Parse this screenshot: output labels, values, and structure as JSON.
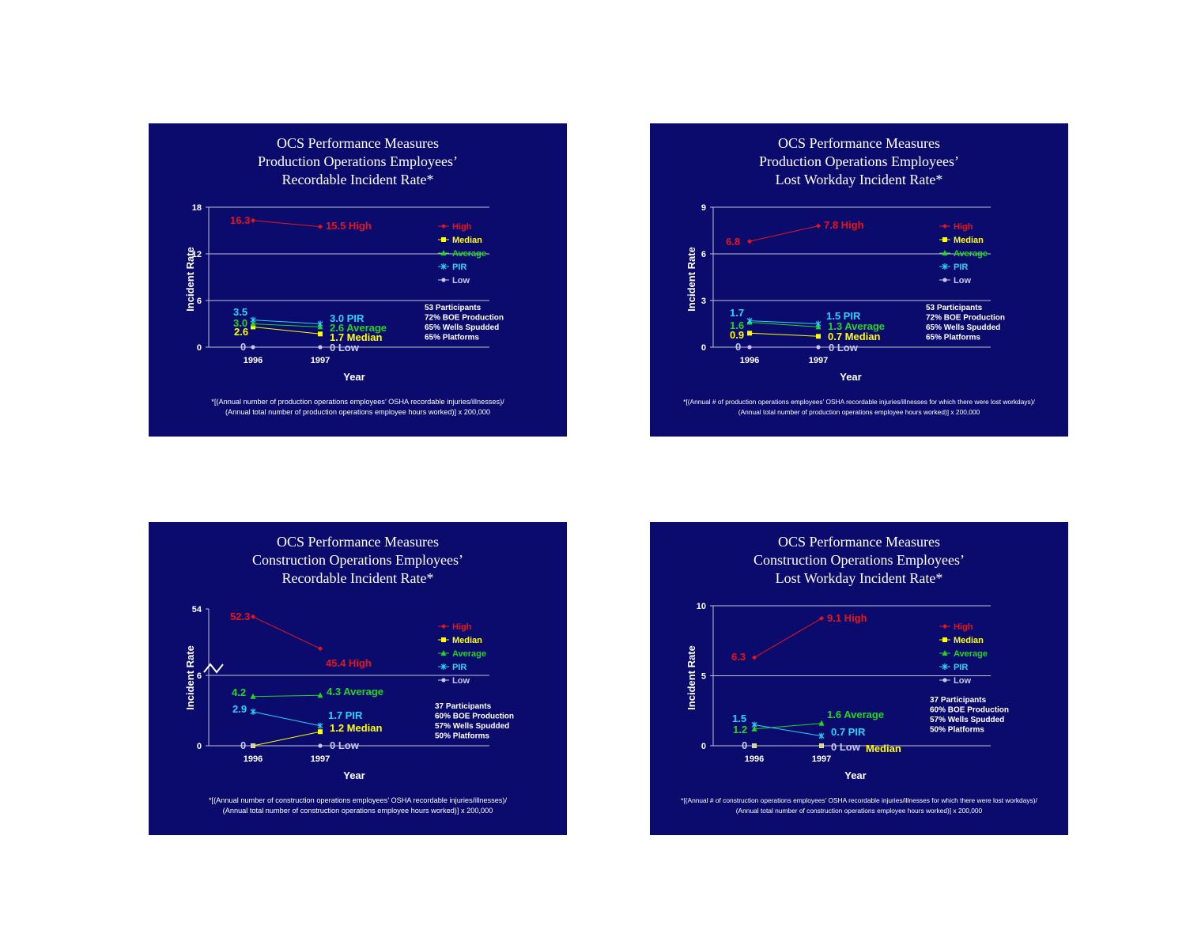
{
  "colors": {
    "slide_bg": "#0b0b6e",
    "High": "#e8141a",
    "Median": "#ffff00",
    "Average": "#22d622",
    "PIR": "#2ad4f4",
    "Low": "#c8c8f0",
    "text": "#ffffff"
  },
  "chart_data": [
    {
      "type": "line",
      "title": [
        "OCS Performance Measures",
        "Production Operations Employees’",
        "Recordable Incident Rate*"
      ],
      "footnote": [
        "*[(Annual number of production operations employees’ OSHA recordable injuries/illnesses)/",
        "(Annual total number of production operations employee hours worked)] x 200,000"
      ],
      "xlabel": "Year",
      "ylabel": "Incident Rate",
      "categories": [
        "1996",
        "1997"
      ],
      "y_ticks": [
        "0",
        "6",
        "12",
        "18"
      ],
      "ylim": [
        0,
        18
      ],
      "gridlines": [
        6,
        12,
        18
      ],
      "legend_position": "right",
      "legend": [
        "High",
        "Median",
        "Average",
        "PIR",
        "Low"
      ],
      "series": [
        {
          "name": "High",
          "values": [
            16.3,
            15.5
          ],
          "labels": [
            "16.3",
            "15.5 High"
          ]
        },
        {
          "name": "Median",
          "values": [
            2.6,
            1.7
          ],
          "labels": [
            "2.6",
            "1.7 Median"
          ]
        },
        {
          "name": "Average",
          "values": [
            3.0,
            2.6
          ],
          "labels": [
            "3.0",
            "2.6 Average"
          ]
        },
        {
          "name": "PIR",
          "values": [
            3.5,
            3.0
          ],
          "labels": [
            "3.5",
            "3.0 PIR"
          ]
        },
        {
          "name": "Low",
          "values": [
            0,
            0
          ],
          "labels": [
            "0",
            "0 Low"
          ]
        }
      ],
      "notes": [
        "53 Participants",
        "72% BOE Production",
        "65% Wells Spudded",
        "65% Platforms"
      ]
    },
    {
      "type": "line",
      "title": [
        "OCS Performance Measures",
        "Production Operations Employees’",
        "Lost Workday Incident Rate*"
      ],
      "footnote": [
        "*[(Annual # of production operations employees’ OSHA recordable injuries/illnesses for which there were lost workdays)/",
        "(Annual total number of production operations employee hours worked)] x 200,000"
      ],
      "xlabel": "Year",
      "ylabel": "Incident Rate",
      "categories": [
        "1996",
        "1997"
      ],
      "y_ticks": [
        "0",
        "3",
        "6",
        "9"
      ],
      "ylim": [
        0,
        9
      ],
      "gridlines": [
        3,
        6,
        9
      ],
      "legend_position": "right",
      "legend": [
        "High",
        "Median",
        "Average",
        "PIR",
        "Low"
      ],
      "series": [
        {
          "name": "High",
          "values": [
            6.8,
            7.8
          ],
          "labels": [
            "6.8",
            "7.8 High"
          ]
        },
        {
          "name": "Median",
          "values": [
            0.9,
            0.7
          ],
          "labels": [
            "0.9",
            "0.7 Median"
          ]
        },
        {
          "name": "Average",
          "values": [
            1.6,
            1.3
          ],
          "labels": [
            "1.6",
            "1.3 Average"
          ]
        },
        {
          "name": "PIR",
          "values": [
            1.7,
            1.5
          ],
          "labels": [
            "1.7",
            "1.5 PIR"
          ]
        },
        {
          "name": "Low",
          "values": [
            0,
            0
          ],
          "labels": [
            "0",
            "0 Low"
          ]
        }
      ],
      "notes": [
        "53 Participants",
        "72% BOE Production",
        "65% Wells Spudded",
        "65% Platforms"
      ]
    },
    {
      "type": "line",
      "title": [
        "OCS Performance Measures",
        "Construction Operations Employees’",
        "Recordable Incident Rate*"
      ],
      "footnote": [
        "*[(Annual number of construction operations employees’ OSHA recordable injuries/illnesses)/",
        "(Annual total number of construction operations employee hours worked)] x 200,000"
      ],
      "xlabel": "Year",
      "ylabel": "Incident Rate",
      "categories": [
        "1996",
        "1997"
      ],
      "y_ticks": [
        "0",
        "6",
        "54"
      ],
      "ylim": [
        0,
        54
      ],
      "axis_break": {
        "lower_max": 6,
        "upper_range": [
          42,
          54
        ]
      },
      "gridlines": [
        6
      ],
      "legend_position": "right",
      "legend": [
        "High",
        "Median",
        "Average",
        "PIR",
        "Low"
      ],
      "series": [
        {
          "name": "High",
          "values": [
            52.3,
            45.4
          ],
          "labels": [
            "52.3",
            "45.4 High"
          ]
        },
        {
          "name": "Median",
          "values": [
            0,
            1.2
          ],
          "labels": [
            "",
            "1.2 Median"
          ]
        },
        {
          "name": "Average",
          "values": [
            4.2,
            4.3
          ],
          "labels": [
            "4.2",
            "4.3 Average"
          ]
        },
        {
          "name": "PIR",
          "values": [
            2.9,
            1.7
          ],
          "labels": [
            "2.9",
            "1.7 PIR"
          ]
        },
        {
          "name": "Low",
          "values": [
            0,
            0
          ],
          "labels": [
            "0",
            "0 Low"
          ]
        }
      ],
      "notes": [
        "37 Participants",
        "60% BOE Production",
        "57% Wells Spudded",
        "50% Platforms"
      ]
    },
    {
      "type": "line",
      "title": [
        "OCS Performance Measures",
        "Construction Operations Employees’",
        "Lost Workday Incident Rate*"
      ],
      "footnote": [
        "*[(Annual # of construction operations employees’ OSHA recordable injuries/illnesses for which there were lost workdays)/",
        "(Annual total number of construction operations employee hours worked)] x 200,000"
      ],
      "xlabel": "Year",
      "ylabel": "Incident Rate",
      "categories": [
        "1996",
        "1997"
      ],
      "y_ticks": [
        "0",
        "5",
        "10"
      ],
      "ylim": [
        0,
        10
      ],
      "gridlines": [
        5,
        10
      ],
      "legend_position": "right",
      "legend": [
        "High",
        "Median",
        "Average",
        "PIR",
        "Low"
      ],
      "series": [
        {
          "name": "High",
          "values": [
            6.3,
            9.1
          ],
          "labels": [
            "6.3",
            "9.1 High"
          ]
        },
        {
          "name": "Median",
          "values": [
            0,
            0
          ],
          "labels": [
            "",
            "Median"
          ]
        },
        {
          "name": "Average",
          "values": [
            1.2,
            1.6
          ],
          "labels": [
            "1.2",
            "1.6 Average"
          ]
        },
        {
          "name": "PIR",
          "values": [
            1.5,
            0.7
          ],
          "labels": [
            "1.5",
            "0.7 PIR"
          ]
        },
        {
          "name": "Low",
          "values": [
            0,
            0
          ],
          "labels": [
            "0",
            "0 Low"
          ]
        }
      ],
      "notes": [
        "37 Participants",
        "60% BOE Production",
        "57% Wells Spudded",
        "50% Platforms"
      ]
    }
  ]
}
